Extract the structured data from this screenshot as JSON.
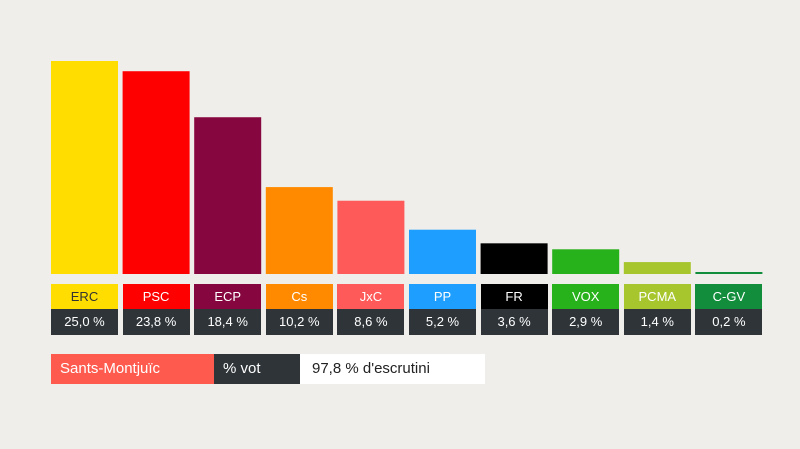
{
  "chart_data": {
    "type": "bar",
    "categories": [
      "ERC",
      "PSC",
      "ECP",
      "Cs",
      "JxC",
      "PP",
      "FR",
      "VOX",
      "PCMA",
      "C-GV"
    ],
    "values": [
      25.0,
      23.8,
      18.4,
      10.2,
      8.6,
      5.2,
      3.6,
      2.9,
      1.4,
      0.2
    ],
    "value_labels": [
      "25,0 %",
      "23,8 %",
      "18,4 %",
      "10,2 %",
      "8,6 %",
      "5,2 %",
      "3,6 %",
      "2,9 %",
      "1,4 %",
      "0,2 %"
    ],
    "bar_colors": [
      "#ffdd00",
      "#ff0000",
      "#86073f",
      "#ff8a00",
      "#ff5a5a",
      "#1e9fff",
      "#000000",
      "#27b11a",
      "#a7c62e",
      "#118d3b"
    ],
    "label_colors": [
      "#ffdd00",
      "#ff0000",
      "#86073f",
      "#ff8a00",
      "#ff5a5a",
      "#1e9fff",
      "#000000",
      "#27b11a",
      "#a7c62e",
      "#118d3b"
    ],
    "label_text_colors": [
      "#333333",
      "#ffffff",
      "#ffffff",
      "#ffffff",
      "#ffffff",
      "#ffffff",
      "#ffffff",
      "#ffffff",
      "#ffffff",
      "#ffffff"
    ],
    "ylim": [
      0,
      25.0
    ],
    "grid": false
  },
  "legend": {
    "district": "Sants-Montjuïc",
    "district_color": "#ff5a4e",
    "metric": "% vot",
    "escrutini": "97,8 % d'escrutini"
  }
}
